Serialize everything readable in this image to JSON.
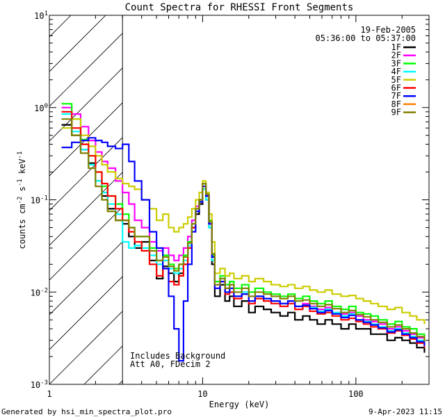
{
  "chart_data": {
    "type": "line",
    "title": "Count Spectra for RHESSI Front Segments",
    "xlabel": "Energy (keV)",
    "ylabel_parts": [
      "counts cm",
      "-2",
      " s",
      "-1",
      " keV",
      "-1"
    ],
    "xscale": "log",
    "yscale": "log",
    "xlim": [
      1,
      300
    ],
    "ylim": [
      0.001,
      10
    ],
    "x_tick_labels": [
      {
        "value": 1,
        "label": "1"
      },
      {
        "value": 10,
        "label": "10"
      },
      {
        "value": 100,
        "label": "100"
      }
    ],
    "y_tick_labels": [
      {
        "value": 0.001,
        "base": "10",
        "exp": "-3"
      },
      {
        "value": 0.01,
        "base": "10",
        "exp": "-2"
      },
      {
        "value": 0.1,
        "base": "10",
        "exp": "-1"
      },
      {
        "value": 1,
        "base": "10",
        "exp": "0"
      },
      {
        "value": 10,
        "base": "10",
        "exp": "1"
      }
    ],
    "hatched_region_x": [
      1,
      3
    ],
    "date": "19-Feb-2005",
    "time_range": "05:36:00 to 05:37:00",
    "annotations": [
      "Includes Background",
      "Att A0, FDecim 2"
    ],
    "footer_left": "Generated by hsi_min_spectra_plot.pro",
    "footer_right": "9-Apr-2023 11:15",
    "series": [
      {
        "name": "1F",
        "color": "#000000",
        "x": [
          1.2,
          1.4,
          1.6,
          1.8,
          2.0,
          2.2,
          2.4,
          2.7,
          3.0,
          3.3,
          3.6,
          4.0,
          4.5,
          5.0,
          5.5,
          6.0,
          6.5,
          7.0,
          7.5,
          8.0,
          8.5,
          9.0,
          9.5,
          10.0,
          10.5,
          11.0,
          11.5,
          12,
          13,
          14,
          15,
          16,
          18,
          20,
          22,
          25,
          28,
          32,
          36,
          40,
          45,
          50,
          56,
          63,
          70,
          80,
          90,
          100,
          112,
          125,
          140,
          160,
          180,
          200,
          225,
          250,
          280
        ],
        "y": [
          0.65,
          0.5,
          0.35,
          0.25,
          0.16,
          0.11,
          0.08,
          0.06,
          0.055,
          0.04,
          0.03,
          0.035,
          0.022,
          0.014,
          0.019,
          0.016,
          0.013,
          0.016,
          0.02,
          0.03,
          0.05,
          0.07,
          0.09,
          0.13,
          0.1,
          0.05,
          0.02,
          0.009,
          0.012,
          0.008,
          0.009,
          0.007,
          0.008,
          0.006,
          0.007,
          0.0065,
          0.006,
          0.0055,
          0.006,
          0.005,
          0.0055,
          0.005,
          0.0045,
          0.005,
          0.0045,
          0.004,
          0.0045,
          0.004,
          0.004,
          0.0035,
          0.0035,
          0.003,
          0.0032,
          0.003,
          0.0028,
          0.0025,
          0.0022
        ]
      },
      {
        "name": "2F",
        "color": "#ff00ff",
        "x": [
          1.2,
          1.4,
          1.6,
          1.8,
          2.0,
          2.2,
          2.4,
          2.7,
          3.0,
          3.3,
          3.6,
          4.0,
          4.5,
          5.0,
          5.5,
          6.0,
          6.5,
          7.0,
          7.5,
          8.0,
          8.5,
          9.0,
          9.5,
          10.0,
          10.5,
          11.0,
          11.5,
          12,
          13,
          14,
          15,
          16,
          18,
          20,
          22,
          25,
          28,
          32,
          36,
          40,
          45,
          50,
          56,
          63,
          70,
          80,
          90,
          100,
          112,
          125,
          140,
          160,
          180,
          200,
          225,
          250,
          280
        ],
        "y": [
          1.0,
          0.85,
          0.62,
          0.44,
          0.33,
          0.26,
          0.22,
          0.16,
          0.12,
          0.09,
          0.06,
          0.05,
          0.035,
          0.028,
          0.03,
          0.025,
          0.022,
          0.025,
          0.03,
          0.04,
          0.06,
          0.085,
          0.1,
          0.14,
          0.11,
          0.055,
          0.025,
          0.012,
          0.014,
          0.011,
          0.012,
          0.009,
          0.01,
          0.008,
          0.009,
          0.0085,
          0.008,
          0.0075,
          0.008,
          0.007,
          0.0075,
          0.007,
          0.0065,
          0.0068,
          0.006,
          0.0058,
          0.006,
          0.0055,
          0.005,
          0.0048,
          0.0045,
          0.004,
          0.0042,
          0.0038,
          0.0035,
          0.0032,
          0.0028
        ]
      },
      {
        "name": "3F",
        "color": "#00ff00",
        "x": [
          1.2,
          1.4,
          1.6,
          1.8,
          2.0,
          2.2,
          2.4,
          2.7,
          3.0,
          3.3,
          3.6,
          4.0,
          4.5,
          5.0,
          5.5,
          6.0,
          6.5,
          7.0,
          7.5,
          8.0,
          8.5,
          9.0,
          9.5,
          10.0,
          10.5,
          11.0,
          11.5,
          12,
          13,
          14,
          15,
          16,
          18,
          20,
          22,
          25,
          28,
          32,
          36,
          40,
          45,
          50,
          56,
          63,
          70,
          80,
          90,
          100,
          112,
          125,
          140,
          160,
          180,
          200,
          225,
          250,
          280
        ],
        "y": [
          1.1,
          0.75,
          0.45,
          0.3,
          0.2,
          0.14,
          0.11,
          0.09,
          0.07,
          0.05,
          0.04,
          0.04,
          0.03,
          0.022,
          0.025,
          0.02,
          0.018,
          0.02,
          0.025,
          0.035,
          0.055,
          0.08,
          0.1,
          0.15,
          0.12,
          0.06,
          0.025,
          0.013,
          0.015,
          0.012,
          0.013,
          0.011,
          0.012,
          0.01,
          0.011,
          0.01,
          0.0095,
          0.009,
          0.0095,
          0.0085,
          0.009,
          0.008,
          0.0075,
          0.008,
          0.007,
          0.0065,
          0.007,
          0.006,
          0.0058,
          0.0055,
          0.005,
          0.0045,
          0.0048,
          0.0042,
          0.004,
          0.0035,
          0.003
        ]
      },
      {
        "name": "4F",
        "color": "#00ffff",
        "x": [
          1.2,
          1.4,
          1.6,
          1.8,
          2.0,
          2.2,
          2.4,
          2.7,
          3.0,
          3.3,
          3.6,
          4.0,
          4.5,
          5.0,
          5.5,
          6.0,
          6.5,
          7.0,
          7.5,
          8.0,
          8.5,
          9.0,
          9.5,
          10.0,
          10.5,
          11.0,
          11.5,
          12,
          13,
          14,
          15,
          16,
          18,
          20,
          22,
          25,
          28,
          32,
          36,
          40,
          45,
          50,
          56,
          63,
          70,
          80,
          90,
          100,
          112,
          125,
          140,
          160,
          180,
          200,
          225,
          250,
          280
        ],
        "y": [
          0.85,
          0.55,
          0.35,
          0.24,
          0.16,
          0.12,
          0.09,
          0.07,
          0.035,
          0.03,
          0.032,
          0.03,
          0.025,
          0.02,
          0.022,
          0.018,
          0.016,
          0.018,
          0.022,
          0.032,
          0.05,
          0.075,
          0.095,
          0.13,
          0.1,
          0.05,
          0.022,
          0.011,
          0.013,
          0.01,
          0.011,
          0.009,
          0.01,
          0.008,
          0.009,
          0.0085,
          0.008,
          0.0075,
          0.008,
          0.007,
          0.0072,
          0.0068,
          0.0062,
          0.0065,
          0.006,
          0.0055,
          0.0058,
          0.005,
          0.0048,
          0.0045,
          0.0042,
          0.0038,
          0.004,
          0.0036,
          0.0033,
          0.003,
          0.0026
        ]
      },
      {
        "name": "5F",
        "color": "#cccc00",
        "x": [
          1.2,
          1.4,
          1.6,
          1.8,
          2.0,
          2.2,
          2.4,
          2.7,
          3.0,
          3.3,
          3.6,
          4.0,
          4.5,
          5.0,
          5.5,
          6.0,
          6.5,
          7.0,
          7.5,
          8.0,
          8.5,
          9.0,
          9.5,
          10.0,
          10.5,
          11.0,
          11.5,
          12,
          13,
          14,
          15,
          16,
          18,
          20,
          22,
          25,
          28,
          32,
          36,
          40,
          45,
          50,
          56,
          63,
          70,
          80,
          90,
          100,
          112,
          125,
          140,
          160,
          180,
          200,
          225,
          250,
          280
        ],
        "y": [
          0.6,
          0.75,
          0.5,
          0.38,
          0.3,
          0.24,
          0.2,
          0.17,
          0.15,
          0.14,
          0.13,
          0.1,
          0.08,
          0.06,
          0.07,
          0.05,
          0.045,
          0.05,
          0.055,
          0.065,
          0.08,
          0.1,
          0.12,
          0.16,
          0.12,
          0.07,
          0.035,
          0.016,
          0.018,
          0.015,
          0.016,
          0.014,
          0.015,
          0.013,
          0.014,
          0.013,
          0.012,
          0.0115,
          0.012,
          0.011,
          0.0115,
          0.0105,
          0.01,
          0.0105,
          0.0095,
          0.009,
          0.0092,
          0.0085,
          0.008,
          0.0075,
          0.007,
          0.0065,
          0.0068,
          0.006,
          0.0055,
          0.005,
          0.0045
        ]
      },
      {
        "name": "6F",
        "color": "#ff0000",
        "x": [
          1.2,
          1.4,
          1.6,
          1.8,
          2.0,
          2.2,
          2.4,
          2.7,
          3.0,
          3.3,
          3.6,
          4.0,
          4.5,
          5.0,
          5.5,
          6.0,
          6.5,
          7.0,
          7.5,
          8.0,
          8.5,
          9.0,
          9.5,
          10.0,
          10.5,
          11.0,
          11.5,
          12,
          13,
          14,
          15,
          16,
          18,
          20,
          22,
          25,
          28,
          32,
          36,
          40,
          45,
          50,
          56,
          63,
          70,
          80,
          90,
          100,
          112,
          125,
          140,
          160,
          180,
          200,
          225,
          250,
          280
        ],
        "y": [
          0.9,
          0.6,
          0.4,
          0.3,
          0.2,
          0.15,
          0.11,
          0.08,
          0.06,
          0.045,
          0.035,
          0.028,
          0.02,
          0.015,
          0.018,
          0.013,
          0.012,
          0.015,
          0.02,
          0.03,
          0.05,
          0.075,
          0.095,
          0.14,
          0.11,
          0.055,
          0.024,
          0.011,
          0.013,
          0.0095,
          0.01,
          0.0085,
          0.0095,
          0.0075,
          0.0085,
          0.008,
          0.0075,
          0.007,
          0.0075,
          0.0065,
          0.007,
          0.0062,
          0.0058,
          0.006,
          0.0055,
          0.005,
          0.0052,
          0.0048,
          0.0045,
          0.0042,
          0.004,
          0.0036,
          0.0038,
          0.0034,
          0.0031,
          0.0028,
          0.0025
        ]
      },
      {
        "name": "7F",
        "color": "#0000ff",
        "x": [
          1.2,
          1.4,
          1.6,
          1.8,
          2.0,
          2.2,
          2.4,
          2.7,
          3.0,
          3.3,
          3.6,
          4.0,
          4.5,
          5.0,
          5.5,
          6.0,
          6.5,
          7.0,
          7.5,
          8.0,
          8.5,
          9.0,
          9.5,
          10.0,
          10.5,
          11.0,
          11.5,
          12,
          13,
          14,
          15,
          16,
          18,
          20,
          22,
          25,
          28,
          32,
          36,
          40,
          45,
          50,
          56,
          63,
          70,
          80,
          90,
          100,
          112,
          125,
          140,
          160,
          180,
          200,
          225,
          250,
          280
        ],
        "y": [
          0.37,
          0.42,
          0.44,
          0.47,
          0.44,
          0.42,
          0.38,
          0.36,
          0.4,
          0.26,
          0.16,
          0.1,
          0.045,
          0.03,
          0.018,
          0.009,
          0.004,
          0.0018,
          0.008,
          0.02,
          0.045,
          0.075,
          0.095,
          0.14,
          0.11,
          0.055,
          0.024,
          0.011,
          0.013,
          0.01,
          0.011,
          0.009,
          0.0095,
          0.008,
          0.009,
          0.0085,
          0.008,
          0.0075,
          0.008,
          0.007,
          0.0072,
          0.0066,
          0.006,
          0.0063,
          0.0058,
          0.0053,
          0.0056,
          0.005,
          0.0047,
          0.0044,
          0.0041,
          0.0037,
          0.0039,
          0.0035,
          0.0032,
          0.0029,
          0.0026
        ]
      },
      {
        "name": "8F",
        "color": "#ff8000",
        "x": [],
        "y": []
      },
      {
        "name": "9F",
        "color": "#808000",
        "x": [
          1.2,
          1.4,
          1.6,
          1.8,
          2.0,
          2.2,
          2.4,
          2.7,
          3.0,
          3.3,
          3.6,
          4.0,
          4.5,
          5.0,
          5.5,
          6.0,
          6.5,
          7.0,
          7.5,
          8.0,
          8.5,
          9.0,
          9.5,
          10.0,
          10.5,
          11.0,
          11.5,
          12,
          13,
          14,
          15,
          16,
          18,
          20,
          22,
          25,
          28,
          32,
          36,
          40,
          45,
          50,
          56,
          63,
          70,
          80,
          90,
          100,
          112,
          125,
          140,
          160,
          180,
          200,
          225,
          250,
          280
        ],
        "y": [
          0.75,
          0.5,
          0.32,
          0.22,
          0.14,
          0.1,
          0.075,
          0.06,
          0.06,
          0.05,
          0.04,
          0.04,
          0.028,
          0.022,
          0.024,
          0.019,
          0.017,
          0.02,
          0.024,
          0.034,
          0.055,
          0.08,
          0.1,
          0.15,
          0.115,
          0.058,
          0.026,
          0.012,
          0.014,
          0.011,
          0.012,
          0.01,
          0.011,
          0.009,
          0.01,
          0.0095,
          0.009,
          0.0085,
          0.009,
          0.008,
          0.0082,
          0.0075,
          0.007,
          0.0073,
          0.0066,
          0.006,
          0.0063,
          0.0057,
          0.0054,
          0.005,
          0.0047,
          0.0042,
          0.0044,
          0.004,
          0.0036,
          0.0033,
          0.0029
        ]
      }
    ]
  }
}
